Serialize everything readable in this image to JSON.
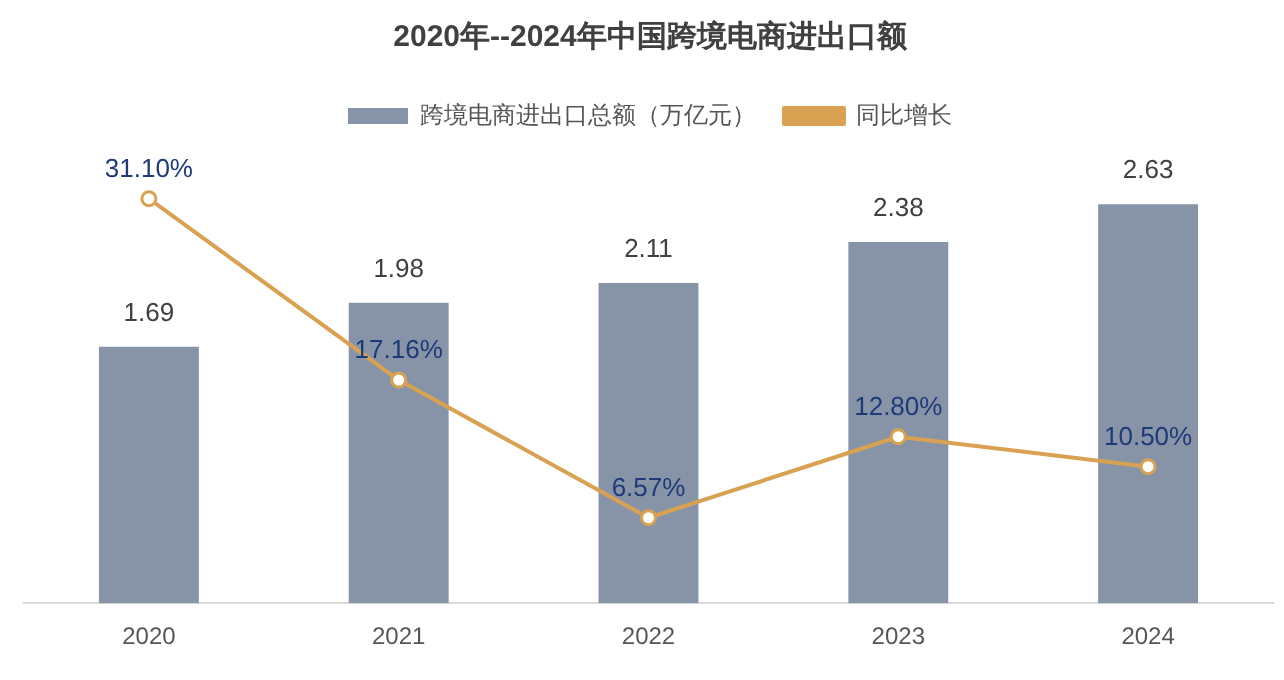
{
  "chart_data": {
    "type": "bar",
    "title": "2020年--2024年中国跨境电商进出口额",
    "categories": [
      "2020",
      "2021",
      "2022",
      "2023",
      "2024"
    ],
    "series": [
      {
        "name": "跨境电商进出口总额（万亿元）",
        "color": "#8794a8",
        "values": [
          1.69,
          1.98,
          2.11,
          2.38,
          2.63
        ],
        "value_labels": [
          "1.69",
          "1.98",
          "2.11",
          "2.38",
          "2.63"
        ]
      },
      {
        "name": "同比增长",
        "type": "line",
        "axis": "y2",
        "color": "#d9a152",
        "values": [
          31.1,
          17.16,
          6.57,
          12.8,
          10.5
        ],
        "value_labels": [
          "31.10%",
          "17.16%",
          "6.57%",
          "12.80%",
          "10.50%"
        ]
      }
    ],
    "tick_labels": "x",
    "legend": "top",
    "marker": "circle",
    "grid": false
  }
}
